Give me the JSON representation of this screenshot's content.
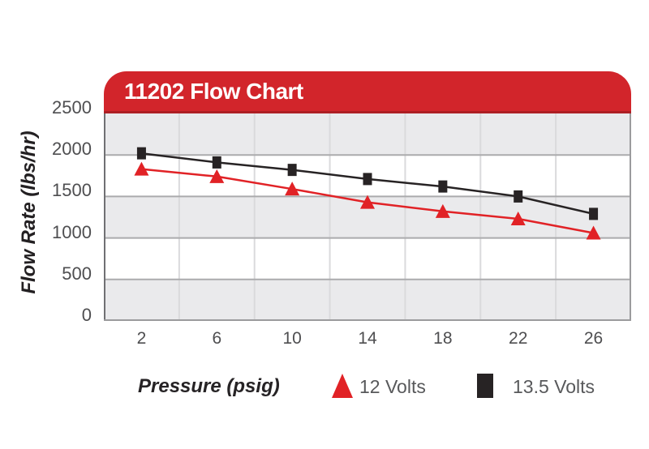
{
  "header": {
    "title": "11202 Flow Chart",
    "background": "#D2252B",
    "underline_color": "#AD1F24",
    "text_color": "#FFFFFF"
  },
  "chart_data": {
    "type": "line",
    "title": "11202 Flow Chart",
    "x": [
      2,
      6,
      10,
      14,
      18,
      22,
      26
    ],
    "x_tick_labels": [
      "2",
      "6",
      "10",
      "14",
      "18",
      "22",
      "26"
    ],
    "y_tick_labels": [
      "2500",
      "2000",
      "1500",
      "1000",
      "500",
      "0"
    ],
    "yticks": [
      0,
      500,
      1000,
      1500,
      2000,
      2500
    ],
    "ylim": [
      0,
      2500
    ],
    "ytick_interval": 500,
    "xlabel": "Pressure (psig)",
    "ylabel": "Flow Rate (lbs/hr)",
    "grid": "horizontal gridlines + vertical category separators + alternating bands",
    "legend_position": "bottom",
    "series": [
      {
        "name": "12 Volts",
        "marker": "triangle",
        "color": "#E12226",
        "values": [
          1830,
          1740,
          1590,
          1430,
          1320,
          1230,
          1060
        ]
      },
      {
        "name": "13.5 Volts",
        "marker": "square",
        "color": "#272324",
        "values": [
          2020,
          1910,
          1820,
          1710,
          1620,
          1500,
          1290
        ]
      }
    ]
  },
  "legend": {
    "items": [
      {
        "label": "12 Volts",
        "marker": "triangle",
        "color": "#E12226"
      },
      {
        "label": "13.5 Volts",
        "marker": "square",
        "color": "#272324"
      }
    ]
  },
  "colors": {
    "band_gray": "#EAEAEC",
    "band_white": "#FFFFFF",
    "h_gridline": "#ABABAD",
    "v_gridline": "#DADADC",
    "border_left": "#707073",
    "border_right": "#9B9B9D",
    "border_bottom": "#9B9B9D",
    "tick_text": "#4E4E50",
    "axis_title_text": "#232022",
    "legend_text": "#58595B"
  }
}
